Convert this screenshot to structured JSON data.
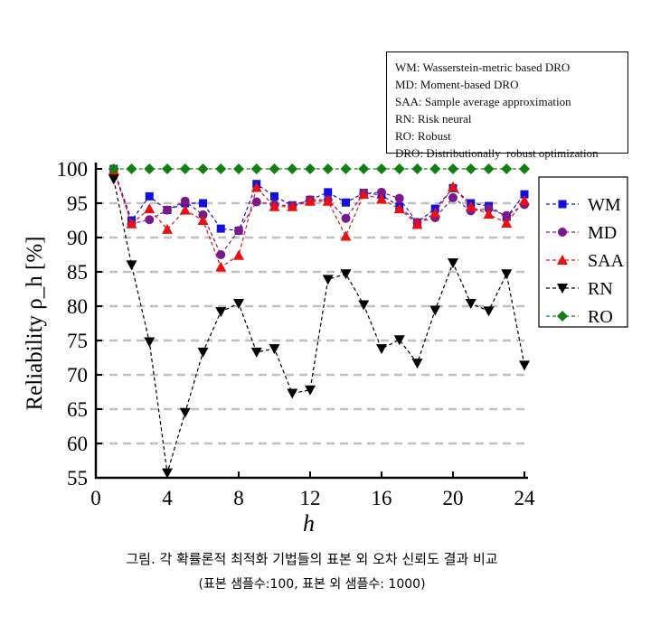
{
  "note": [
    "WM: Wasserstein-metric based DRO",
    "MD: Moment-based DRO",
    "SAA: Sample average approximation",
    "RN: Risk neural",
    "RO: Robust",
    "DRO: Distributionally  robust optimization"
  ],
  "caption": {
    "line1": "그림. 각 확률론적 최적화 기법들의 표본 외 오차 신뢰도 결과 비교",
    "line2": "(표본 샘플수:100, 표본 외 샘플수: 1000)"
  },
  "chart_data": {
    "type": "line",
    "xlabel": "h",
    "ylabel": "Reliability ρ_h [%]",
    "xlim": [
      0,
      24
    ],
    "ylim": [
      55,
      100
    ],
    "xticks": [
      0,
      4,
      8,
      12,
      16,
      20,
      24
    ],
    "yticks": [
      55,
      60,
      65,
      70,
      75,
      80,
      85,
      90,
      95,
      100
    ],
    "grid": "horizontal dashed",
    "legend": "right",
    "x": [
      1,
      2,
      3,
      4,
      5,
      6,
      7,
      8,
      9,
      10,
      11,
      12,
      13,
      14,
      15,
      16,
      17,
      18,
      19,
      20,
      21,
      22,
      23,
      24
    ],
    "series": [
      {
        "name": "WM",
        "color": "#1010e0",
        "marker": "square",
        "values": [
          100,
          92.5,
          96,
          94,
          95,
          95,
          91.3,
          91,
          97.8,
          96,
          94.7,
          95.5,
          96.6,
          95.1,
          96.5,
          96.2,
          94.5,
          92.2,
          94.2,
          97.2,
          95,
          94.6,
          93,
          96.3
        ]
      },
      {
        "name": "MD",
        "color": "#7a1a8a",
        "marker": "circle",
        "values": [
          100,
          92,
          92.6,
          94,
          95.3,
          93.3,
          87.5,
          91,
          95.2,
          94.8,
          94.6,
          95.5,
          95.5,
          92.8,
          96.4,
          96.6,
          95.7,
          92.2,
          92.9,
          95.8,
          93.9,
          94.2,
          93.2,
          94.8
        ]
      },
      {
        "name": "SAA",
        "color": "#e81010",
        "marker": "triangle-up",
        "values": [
          99.8,
          92,
          94.2,
          91.2,
          94,
          92.5,
          85.7,
          87.4,
          97.3,
          94.5,
          94.5,
          95.3,
          95.3,
          90.2,
          96.3,
          95.6,
          94.2,
          91.9,
          93.6,
          97.4,
          94.5,
          93.4,
          92.1,
          95.4
        ]
      },
      {
        "name": "RN",
        "color": "#000000",
        "marker": "triangle-down",
        "values": [
          98.5,
          86,
          74.8,
          55.7,
          64.5,
          73.3,
          79.2,
          80.4,
          73.3,
          73.8,
          67.3,
          67.8,
          83.9,
          84.7,
          80.2,
          73.8,
          75.1,
          71.7,
          79.4,
          86.3,
          80.4,
          79.3,
          84.7,
          71.4
        ]
      },
      {
        "name": "RO",
        "color": "#108010",
        "marker": "diamond",
        "values": [
          100,
          100,
          100,
          100,
          100,
          100,
          100,
          100,
          100,
          100,
          100,
          100,
          100,
          100,
          100,
          100,
          100,
          100,
          100,
          100,
          100,
          100,
          100,
          100
        ]
      }
    ]
  }
}
